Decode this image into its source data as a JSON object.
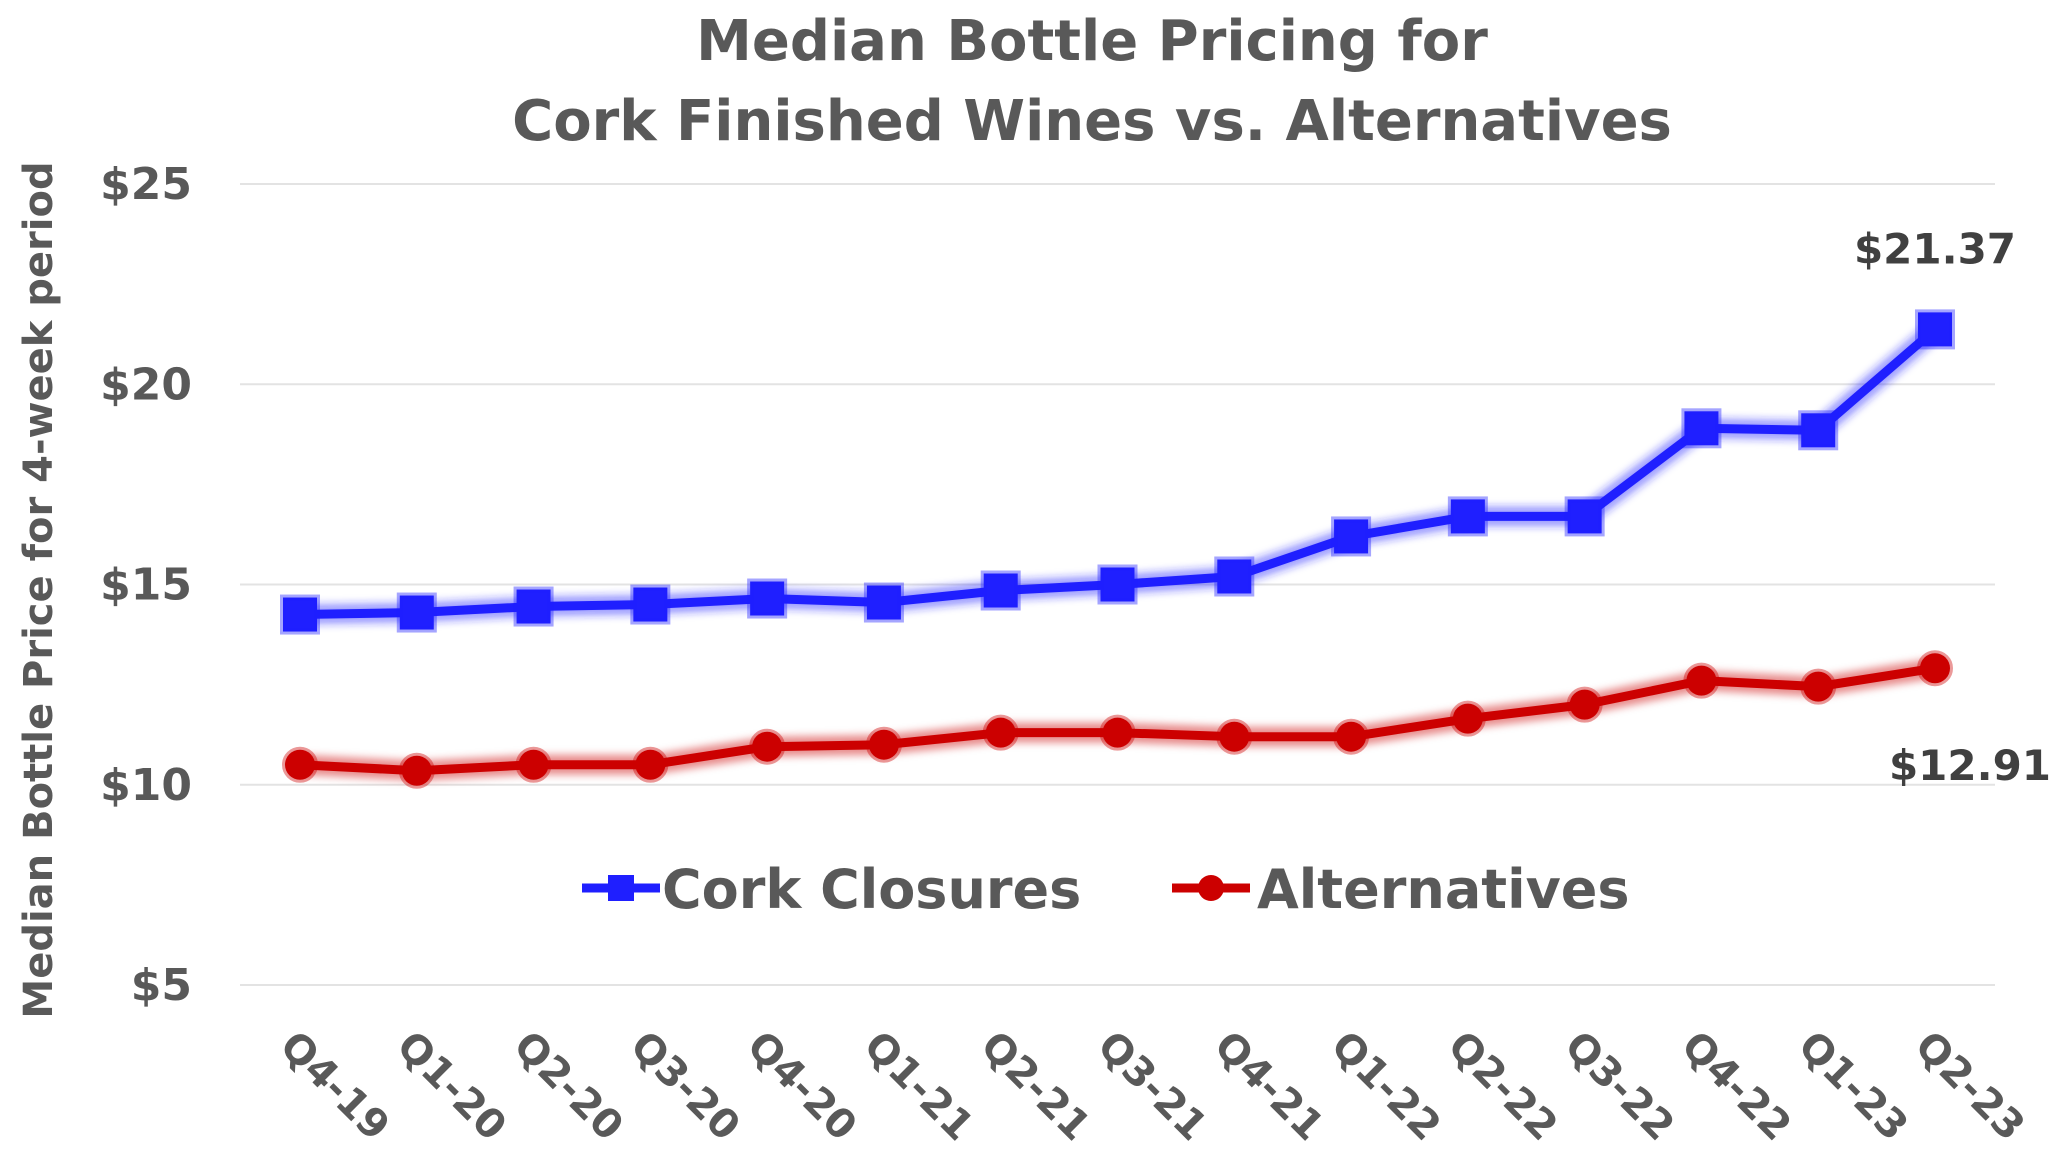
{
  "chart_data": {
    "type": "line",
    "title_line1": "Median Bottle Pricing for",
    "title_line2": "Cork Finished Wines vs. Alternatives",
    "xlabel": "",
    "ylabel": "Median Bottle Price for 4-week period",
    "categories": [
      "Q4-19",
      "Q1-20",
      "Q2-20",
      "Q3-20",
      "Q4-20",
      "Q1-21",
      "Q2-21",
      "Q3-21",
      "Q4-21",
      "Q1-22",
      "Q2-22",
      "Q3-22",
      "Q4-22",
      "Q1-23",
      "Q2-23"
    ],
    "ylim": [
      5,
      25
    ],
    "yticks": [
      5,
      10,
      15,
      20,
      25
    ],
    "ytick_labels": [
      "$5",
      "$10",
      "$15",
      "$20",
      "$25"
    ],
    "grid": true,
    "legend_position": "center",
    "series": [
      {
        "name": "Cork Closures",
        "color": "#1f1fff",
        "marker": "square",
        "values": [
          14.25,
          14.3,
          14.45,
          14.5,
          14.65,
          14.55,
          14.85,
          15.0,
          15.2,
          16.2,
          16.7,
          16.7,
          18.9,
          18.85,
          21.37
        ]
      },
      {
        "name": "Alternatives",
        "color": "#cc0000",
        "marker": "circle",
        "values": [
          10.5,
          10.35,
          10.5,
          10.5,
          10.95,
          11.0,
          11.3,
          11.3,
          11.2,
          11.2,
          11.65,
          12.0,
          12.6,
          12.45,
          12.91
        ]
      }
    ],
    "annotations": [
      {
        "series": 0,
        "index": 14,
        "label": "$21.37"
      },
      {
        "series": 1,
        "index": 14,
        "label": "$12.91"
      }
    ]
  }
}
